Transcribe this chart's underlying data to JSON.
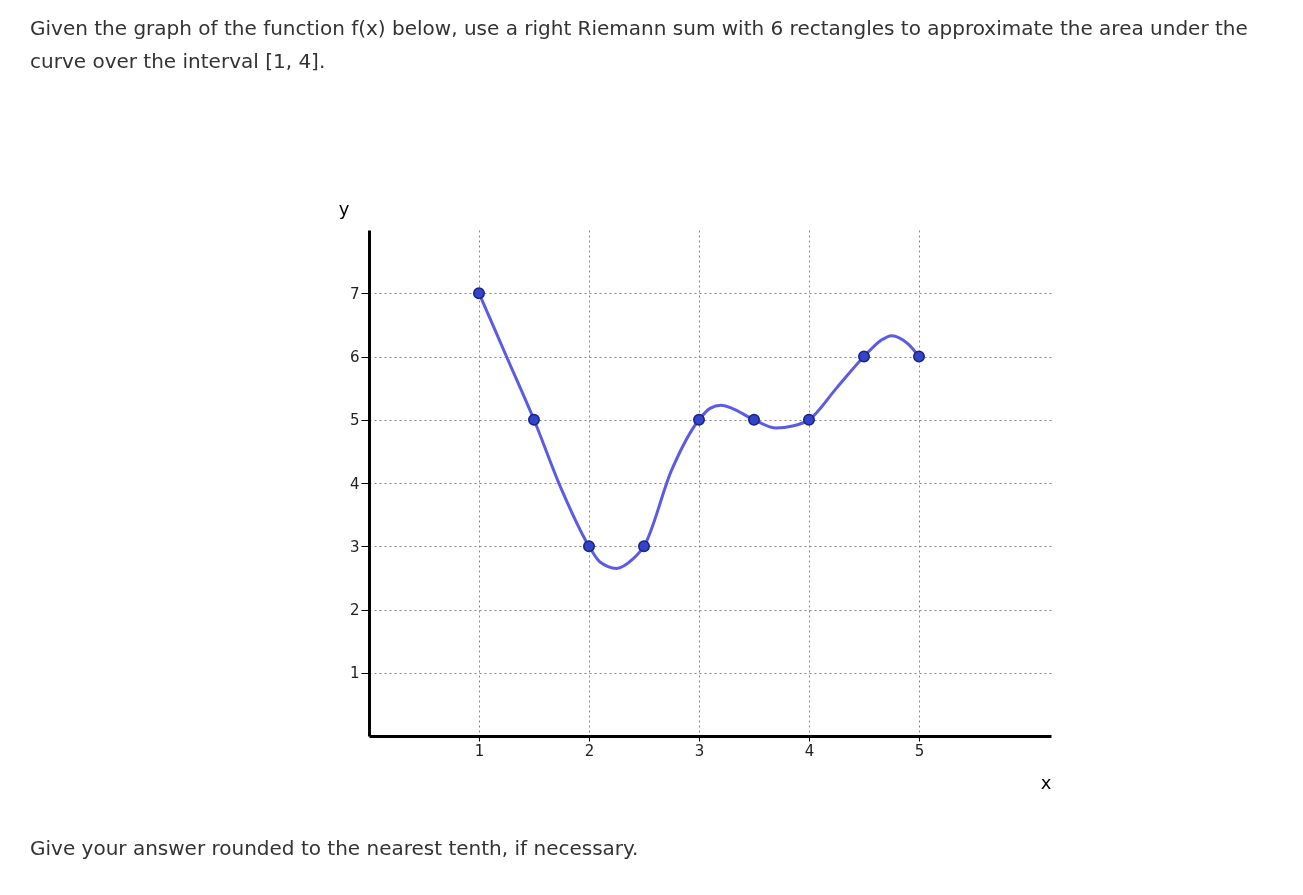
{
  "chart_data": {
    "type": "line",
    "title": "Given the graph of the function f(x) below, use a right Riemann sum with 6 rectangles to approximate the area under the curve over the interval [1, 4].",
    "xlabel": "x",
    "ylabel": "y",
    "annotations": [
      "Give your answer rounded to the nearest tenth, if necessary."
    ],
    "xlim": [
      0,
      6.2
    ],
    "ylim": [
      0,
      8
    ],
    "xticks": [
      1,
      2,
      3,
      4,
      5
    ],
    "yticks": [
      1,
      2,
      3,
      4,
      5,
      6,
      7
    ],
    "grid": true,
    "series": [
      {
        "color": "#5b5be6",
        "x": [
          1,
          1.25,
          1.5,
          1.75,
          2,
          2.1,
          2.25,
          2.4,
          2.5,
          2.75,
          3,
          3.1,
          3.2,
          3.3,
          3.5,
          3.7,
          3.85,
          4,
          4.25,
          4.5,
          4.65,
          4.75,
          4.9,
          5
        ],
        "values": [
          7,
          6,
          5,
          3.9,
          3,
          2.75,
          2.65,
          2.8,
          3,
          4.2,
          5,
          5.18,
          5.23,
          5.18,
          5,
          4.87,
          4.9,
          5,
          5.5,
          6,
          6.25,
          6.33,
          6.2,
          6
        ]
      },
      {
        "type": "scatter",
        "color": "#3344cc",
        "x": [
          1,
          1.5,
          2,
          2.5,
          3,
          3.5,
          4,
          4.5,
          5
        ],
        "values": [
          7,
          5,
          3,
          3,
          5,
          5,
          5,
          6,
          6
        ]
      }
    ]
  }
}
